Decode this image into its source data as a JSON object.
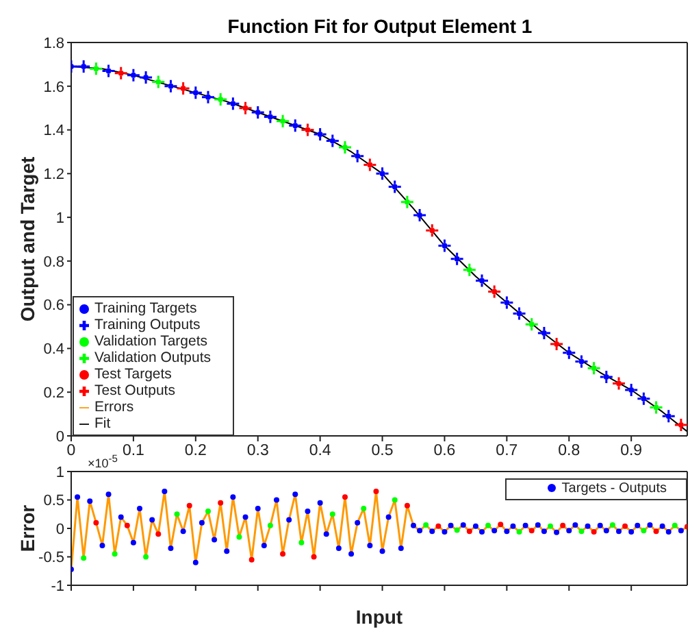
{
  "chart_data": [
    {
      "type": "scatter",
      "title": "Function Fit for Output Element 1",
      "ylabel": "Output and Target",
      "xlim": [
        0,
        0.99
      ],
      "xticks": [
        0,
        0.1,
        0.2,
        0.3,
        0.4,
        0.5,
        0.6,
        0.7,
        0.8,
        0.9
      ],
      "ylim": [
        0,
        1.8
      ],
      "yticks": [
        0,
        0.2,
        0.4,
        0.6,
        0.8,
        1,
        1.2,
        1.4,
        1.6,
        1.8
      ],
      "legend": "bottom left",
      "series": [
        {
          "name": "Training Targets",
          "color": "#0000ff",
          "marker": "circle",
          "x": [
            0,
            0.02,
            0.06,
            0.1,
            0.12,
            0.16,
            0.2,
            0.22,
            0.26,
            0.3,
            0.32,
            0.36,
            0.4,
            0.42,
            0.46,
            0.5,
            0.52,
            0.56,
            0.6,
            0.62,
            0.66,
            0.7,
            0.72,
            0.76,
            0.8,
            0.82,
            0.86,
            0.9,
            0.92,
            0.96
          ],
          "values": [
            1.69,
            1.69,
            1.67,
            1.65,
            1.64,
            1.6,
            1.57,
            1.55,
            1.52,
            1.48,
            1.46,
            1.42,
            1.38,
            1.35,
            1.28,
            1.2,
            1.14,
            1.01,
            0.87,
            0.81,
            0.71,
            0.61,
            0.56,
            0.47,
            0.38,
            0.34,
            0.27,
            0.21,
            0.17,
            0.09
          ]
        },
        {
          "name": "Training Outputs",
          "color": "#0000ff",
          "marker": "cross",
          "x": [
            0,
            0.02,
            0.06,
            0.1,
            0.12,
            0.16,
            0.2,
            0.22,
            0.26,
            0.3,
            0.32,
            0.36,
            0.4,
            0.42,
            0.46,
            0.5,
            0.52,
            0.56,
            0.6,
            0.62,
            0.66,
            0.7,
            0.72,
            0.76,
            0.8,
            0.82,
            0.86,
            0.9,
            0.92,
            0.96
          ],
          "values": [
            1.69,
            1.69,
            1.67,
            1.65,
            1.64,
            1.6,
            1.57,
            1.55,
            1.52,
            1.48,
            1.46,
            1.42,
            1.38,
            1.35,
            1.28,
            1.2,
            1.14,
            1.01,
            0.87,
            0.81,
            0.71,
            0.61,
            0.56,
            0.47,
            0.38,
            0.34,
            0.27,
            0.21,
            0.17,
            0.09
          ]
        },
        {
          "name": "Validation Targets",
          "color": "#00ff00",
          "marker": "circle",
          "x": [
            0.04,
            0.14,
            0.24,
            0.34,
            0.44,
            0.54,
            0.64,
            0.74,
            0.84,
            0.94
          ],
          "values": [
            1.68,
            1.62,
            1.54,
            1.44,
            1.32,
            1.07,
            0.76,
            0.51,
            0.31,
            0.13
          ]
        },
        {
          "name": "Validation Outputs",
          "color": "#00ff00",
          "marker": "cross",
          "x": [
            0.04,
            0.14,
            0.24,
            0.34,
            0.44,
            0.54,
            0.64,
            0.74,
            0.84,
            0.94
          ],
          "values": [
            1.68,
            1.62,
            1.54,
            1.44,
            1.32,
            1.07,
            0.76,
            0.51,
            0.31,
            0.13
          ]
        },
        {
          "name": "Test Targets",
          "color": "#ff0000",
          "marker": "circle",
          "x": [
            0.08,
            0.18,
            0.28,
            0.38,
            0.48,
            0.58,
            0.68,
            0.78,
            0.88,
            0.98
          ],
          "values": [
            1.66,
            1.59,
            1.5,
            1.4,
            1.24,
            0.94,
            0.66,
            0.42,
            0.24,
            0.05
          ]
        },
        {
          "name": "Test Outputs",
          "color": "#ff0000",
          "marker": "cross",
          "x": [
            0.08,
            0.18,
            0.28,
            0.38,
            0.48,
            0.58,
            0.68,
            0.78,
            0.88,
            0.98
          ],
          "values": [
            1.66,
            1.59,
            1.5,
            1.4,
            1.24,
            0.94,
            0.66,
            0.42,
            0.24,
            0.05
          ]
        },
        {
          "name": "Fit",
          "type": "line",
          "color": "#000000",
          "x": [
            0,
            0.05,
            0.1,
            0.15,
            0.2,
            0.25,
            0.3,
            0.35,
            0.4,
            0.45,
            0.5,
            0.55,
            0.6,
            0.65,
            0.7,
            0.75,
            0.8,
            0.85,
            0.9,
            0.95,
            0.99
          ],
          "values": [
            1.69,
            1.68,
            1.65,
            1.61,
            1.57,
            1.53,
            1.48,
            1.43,
            1.38,
            1.3,
            1.2,
            1.04,
            0.87,
            0.73,
            0.61,
            0.49,
            0.38,
            0.29,
            0.21,
            0.11,
            0.02
          ]
        }
      ]
    },
    {
      "type": "scatter",
      "xlabel": "Input",
      "ylabel": "Error",
      "xlim": [
        0,
        0.99
      ],
      "xticks": [
        0,
        0.1,
        0.2,
        0.3,
        0.4,
        0.5,
        0.6,
        0.7,
        0.8,
        0.9
      ],
      "ylim": [
        -1,
        1
      ],
      "yticks": [
        -1,
        -0.5,
        0,
        0.5,
        1
      ],
      "tick_labels": "y",
      "legend": "top right",
      "annotations": [
        "×10$^{-5}$"
      ],
      "series": [
        {
          "name": "Errors",
          "type": "line",
          "color": "#ff9900",
          "x": [
            0,
            0.01,
            0.02,
            0.03,
            0.04,
            0.05,
            0.06,
            0.07,
            0.08,
            0.09,
            0.1,
            0.11,
            0.12,
            0.13,
            0.14,
            0.15,
            0.16,
            0.17,
            0.18,
            0.19,
            0.2,
            0.21,
            0.22,
            0.23,
            0.24,
            0.25,
            0.26,
            0.27,
            0.28,
            0.29,
            0.3,
            0.31,
            0.32,
            0.33,
            0.34,
            0.35,
            0.36,
            0.37,
            0.38,
            0.39,
            0.4,
            0.41,
            0.42,
            0.43,
            0.44,
            0.45,
            0.46,
            0.47,
            0.48,
            0.49,
            0.5,
            0.51,
            0.52,
            0.53,
            0.54,
            0.55,
            0.56,
            0.57,
            0.58,
            0.59,
            0.6,
            0.61,
            0.62,
            0.63,
            0.64,
            0.65,
            0.66,
            0.67,
            0.68,
            0.69,
            0.7,
            0.71,
            0.72,
            0.73,
            0.74,
            0.75,
            0.76,
            0.77,
            0.78,
            0.79,
            0.8,
            0.81,
            0.82,
            0.83,
            0.84,
            0.85,
            0.86,
            0.87,
            0.88,
            0.89,
            0.9,
            0.91,
            0.92,
            0.93,
            0.94,
            0.95,
            0.96,
            0.97,
            0.98,
            0.99
          ],
          "values": [
            -0.72,
            0.55,
            -0.52,
            0.48,
            0.1,
            -0.3,
            0.6,
            -0.45,
            0.2,
            0.05,
            -0.25,
            0.35,
            -0.5,
            0.15,
            -0.1,
            0.65,
            -0.35,
            0.25,
            -0.05,
            0.4,
            -0.6,
            0.1,
            0.3,
            -0.2,
            0.45,
            -0.4,
            0.55,
            -0.15,
            0.2,
            -0.55,
            0.35,
            -0.3,
            0.05,
            0.5,
            -0.45,
            0.15,
            0.6,
            -0.25,
            0.3,
            -0.5,
            0.45,
            -0.1,
            0.25,
            -0.35,
            0.55,
            -0.45,
            0.1,
            0.35,
            -0.3,
            0.65,
            -0.4,
            0.2,
            0.5,
            -0.35,
            0.4,
            0.05,
            -0.04,
            0.06,
            -0.05,
            0.04,
            -0.06,
            0.05,
            -0.03,
            0.06,
            -0.05,
            0.04,
            -0.06,
            0.05,
            -0.04,
            0.07,
            -0.05,
            0.04,
            -0.06,
            0.05,
            -0.04,
            0.06,
            -0.05,
            0.04,
            -0.07,
            0.05,
            -0.04,
            0.06,
            -0.05,
            0.04,
            -0.06,
            0.05,
            -0.04,
            0.06,
            -0.05,
            0.04,
            -0.06,
            0.05,
            -0.04,
            0.06,
            -0.05,
            0.04,
            -0.06,
            0.05,
            -0.04,
            0.03
          ]
        },
        {
          "name": "Targets - Outputs",
          "color": "#0000ff",
          "marker": "circle",
          "x": [
            0,
            0.01,
            0.02,
            0.03,
            0.04,
            0.05,
            0.06,
            0.07,
            0.08,
            0.09,
            0.1,
            0.11,
            0.12,
            0.13,
            0.14,
            0.15,
            0.16,
            0.17,
            0.18,
            0.19,
            0.2,
            0.21,
            0.22,
            0.23,
            0.24,
            0.25,
            0.26,
            0.27,
            0.28,
            0.29,
            0.3,
            0.31,
            0.32,
            0.33,
            0.34,
            0.35,
            0.36,
            0.37,
            0.38,
            0.39,
            0.4,
            0.41,
            0.42,
            0.43,
            0.44,
            0.45,
            0.46,
            0.47,
            0.48,
            0.49,
            0.5,
            0.51,
            0.52,
            0.53,
            0.54,
            0.55,
            0.56,
            0.57,
            0.58,
            0.59,
            0.6,
            0.61,
            0.62,
            0.63,
            0.64,
            0.65,
            0.66,
            0.67,
            0.68,
            0.69,
            0.7,
            0.71,
            0.72,
            0.73,
            0.74,
            0.75,
            0.76,
            0.77,
            0.78,
            0.79,
            0.8,
            0.81,
            0.82,
            0.83,
            0.84,
            0.85,
            0.86,
            0.87,
            0.88,
            0.89,
            0.9,
            0.91,
            0.92,
            0.93,
            0.94,
            0.95,
            0.96,
            0.97,
            0.98,
            0.99
          ],
          "values": [
            -0.72,
            0.55,
            -0.52,
            0.48,
            0.1,
            -0.3,
            0.6,
            -0.45,
            0.2,
            0.05,
            -0.25,
            0.35,
            -0.5,
            0.15,
            -0.1,
            0.65,
            -0.35,
            0.25,
            -0.05,
            0.4,
            -0.6,
            0.1,
            0.3,
            -0.2,
            0.45,
            -0.4,
            0.55,
            -0.15,
            0.2,
            -0.55,
            0.35,
            -0.3,
            0.05,
            0.5,
            -0.45,
            0.15,
            0.6,
            -0.25,
            0.3,
            -0.5,
            0.45,
            -0.1,
            0.25,
            -0.35,
            0.55,
            -0.45,
            0.1,
            0.35,
            -0.3,
            0.65,
            -0.4,
            0.2,
            0.5,
            -0.35,
            0.4,
            0.05,
            -0.04,
            0.06,
            -0.05,
            0.04,
            -0.06,
            0.05,
            -0.03,
            0.06,
            -0.05,
            0.04,
            -0.06,
            0.05,
            -0.04,
            0.07,
            -0.05,
            0.04,
            -0.06,
            0.05,
            -0.04,
            0.06,
            -0.05,
            0.04,
            -0.07,
            0.05,
            -0.04,
            0.06,
            -0.05,
            0.04,
            -0.06,
            0.05,
            -0.04,
            0.06,
            -0.05,
            0.04,
            -0.06,
            0.05,
            -0.04,
            0.06,
            -0.05,
            0.04,
            -0.06,
            0.05,
            -0.04,
            0.03
          ],
          "colors": [
            "#0000ff",
            "#0000ff",
            "#00ff00",
            "#0000ff",
            "#ff0000",
            "#0000ff",
            "#0000ff",
            "#00ff00",
            "#0000ff",
            "#ff0000",
            "#0000ff",
            "#0000ff",
            "#00ff00",
            "#0000ff",
            "#ff0000",
            "#0000ff",
            "#0000ff",
            "#00ff00",
            "#0000ff",
            "#ff0000",
            "#0000ff",
            "#0000ff",
            "#00ff00",
            "#0000ff",
            "#ff0000",
            "#0000ff",
            "#0000ff",
            "#00ff00",
            "#0000ff",
            "#ff0000",
            "#0000ff",
            "#0000ff",
            "#00ff00",
            "#0000ff",
            "#ff0000",
            "#0000ff",
            "#0000ff",
            "#00ff00",
            "#0000ff",
            "#ff0000",
            "#0000ff",
            "#0000ff",
            "#00ff00",
            "#0000ff",
            "#ff0000",
            "#0000ff",
            "#0000ff",
            "#00ff00",
            "#0000ff",
            "#ff0000",
            "#0000ff",
            "#0000ff",
            "#00ff00",
            "#0000ff",
            "#ff0000",
            "#0000ff",
            "#0000ff",
            "#00ff00",
            "#0000ff",
            "#ff0000",
            "#0000ff",
            "#0000ff",
            "#00ff00",
            "#0000ff",
            "#ff0000",
            "#0000ff",
            "#0000ff",
            "#00ff00",
            "#0000ff",
            "#ff0000",
            "#0000ff",
            "#0000ff",
            "#00ff00",
            "#0000ff",
            "#ff0000",
            "#0000ff",
            "#0000ff",
            "#00ff00",
            "#0000ff",
            "#ff0000",
            "#0000ff",
            "#0000ff",
            "#00ff00",
            "#0000ff",
            "#ff0000",
            "#0000ff",
            "#0000ff",
            "#00ff00",
            "#0000ff",
            "#ff0000",
            "#0000ff",
            "#0000ff",
            "#00ff00",
            "#0000ff",
            "#ff0000",
            "#0000ff",
            "#0000ff",
            "#00ff00",
            "#0000ff",
            "#ff0000"
          ]
        }
      ]
    }
  ]
}
